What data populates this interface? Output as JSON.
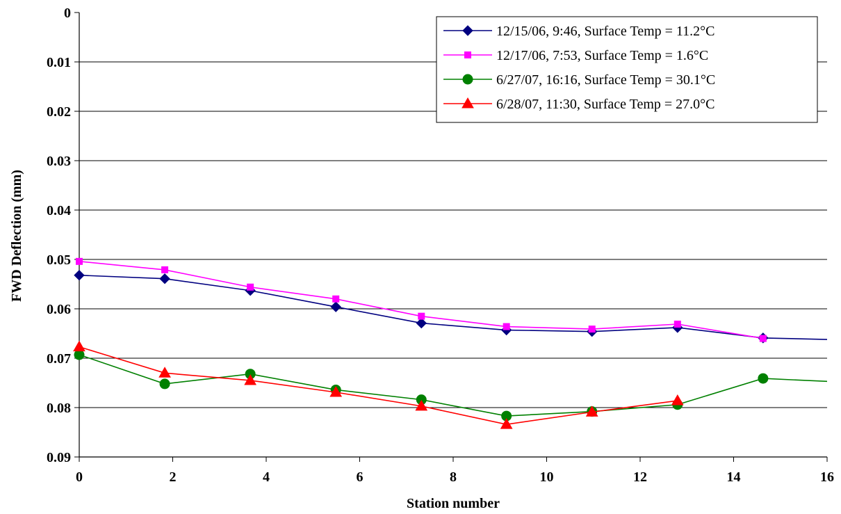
{
  "chart_data": {
    "type": "line",
    "title": "",
    "xlabel": "Station number",
    "ylabel": "FWD Deflection (mm)",
    "xlim": [
      0,
      16
    ],
    "ylim": [
      0,
      0.09
    ],
    "y_inverted": true,
    "x_ticks": [
      "0",
      "2",
      "4",
      "6",
      "8",
      "10",
      "12",
      "14",
      "16"
    ],
    "y_ticks": [
      "0",
      "0.01",
      "0.02",
      "0.03",
      "0.04",
      "0.05",
      "0.06",
      "0.07",
      "0.08",
      "0.09"
    ],
    "grid": "horizontal",
    "legend_position": "top-right",
    "series": [
      {
        "name": "12/15/06, 9:46, Surface Temp = 11.2°C",
        "color": "#000080",
        "marker": "diamond",
        "x": [
          0,
          1.83,
          3.66,
          5.49,
          7.32,
          9.14,
          10.97,
          12.8,
          14.63,
          16.46
        ],
        "y": [
          0.0532,
          0.0539,
          0.0563,
          0.0596,
          0.0629,
          0.0643,
          0.0646,
          0.0638,
          0.0659,
          0.0663
        ]
      },
      {
        "name": "12/17/06, 7:53, Surface Temp = 1.6°C",
        "color": "#FF00FF",
        "marker": "square",
        "x": [
          0,
          1.83,
          3.66,
          5.49,
          7.32,
          9.14,
          10.97,
          12.8,
          14.63
        ],
        "y": [
          0.0504,
          0.0521,
          0.0556,
          0.058,
          0.0615,
          0.0636,
          0.0641,
          0.0631,
          0.066
        ]
      },
      {
        "name": "6/27/07, 16:16, Surface Temp = 30.1°C",
        "color": "#008000",
        "marker": "circle",
        "x": [
          0,
          1.83,
          3.66,
          5.49,
          7.32,
          9.14,
          10.97,
          12.8,
          14.63,
          16.46
        ],
        "y": [
          0.0693,
          0.0752,
          0.0732,
          0.0764,
          0.0784,
          0.0817,
          0.0808,
          0.0794,
          0.0741,
          0.0749
        ]
      },
      {
        "name": "6/28/07, 11:30, Surface Temp = 27.0°C",
        "color": "#FF0000",
        "marker": "triangle",
        "x": [
          0,
          1.83,
          3.66,
          5.49,
          7.32,
          9.14,
          10.97,
          12.8
        ],
        "y": [
          0.0677,
          0.073,
          0.0745,
          0.0769,
          0.0797,
          0.0834,
          0.0809,
          0.0786
        ]
      }
    ]
  }
}
